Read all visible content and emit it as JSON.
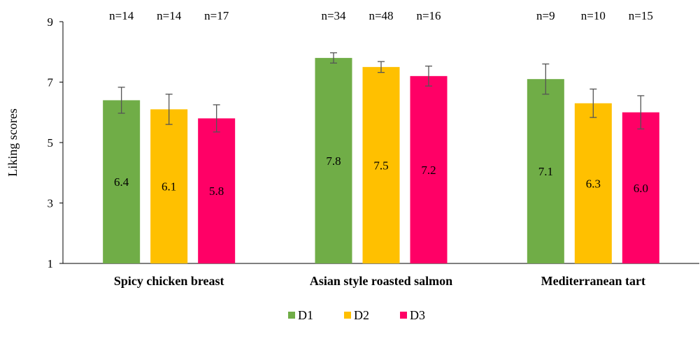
{
  "chart_data": {
    "type": "bar",
    "title": "",
    "xlabel": "",
    "ylabel": "Liking scores",
    "ylim": [
      1,
      9
    ],
    "yticks": [
      1,
      3,
      5,
      7,
      9
    ],
    "categories": [
      "Spicy chicken breast",
      "Asian style roasted salmon",
      "Mediterranean tart"
    ],
    "series": [
      {
        "name": "D1",
        "color": "#70AD47",
        "values": [
          6.4,
          7.8,
          7.1
        ],
        "error": [
          0.43,
          0.17,
          0.5
        ],
        "n": [
          "n=14",
          "n=34",
          "n=9"
        ],
        "value_labels": [
          "6.4",
          "7.8",
          "7.1"
        ]
      },
      {
        "name": "D2",
        "color": "#FFC000",
        "values": [
          6.1,
          7.5,
          6.3
        ],
        "error": [
          0.5,
          0.18,
          0.47
        ],
        "n": [
          "n=14",
          "n=48",
          "n=10"
        ],
        "value_labels": [
          "6.1",
          "7.5",
          "6.3"
        ]
      },
      {
        "name": "D3",
        "color": "#FF0066",
        "values": [
          5.8,
          7.2,
          6.0
        ],
        "error": [
          0.45,
          0.33,
          0.55
        ],
        "n": [
          "n=17",
          "n=16",
          "n=15"
        ],
        "value_labels": [
          "5.8",
          "7.2",
          "6.0"
        ]
      }
    ],
    "legend": "bottom",
    "grid": false
  }
}
